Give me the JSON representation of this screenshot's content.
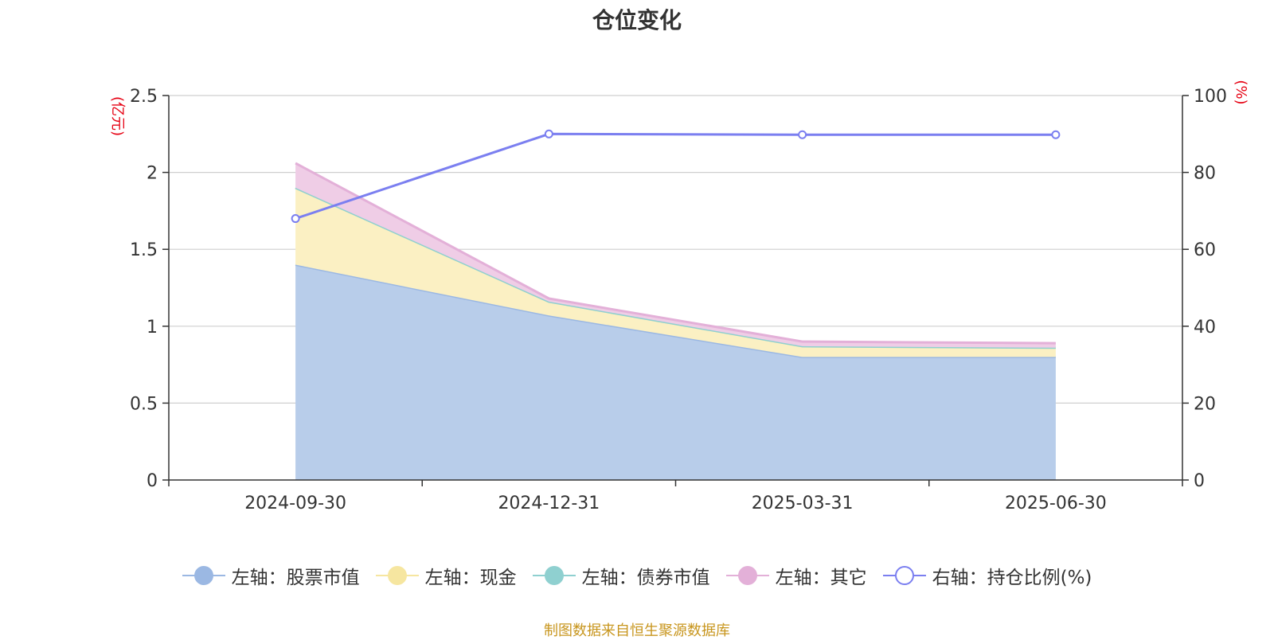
{
  "chart_data": {
    "type": "area",
    "title": "仓位变化",
    "left_axis_unit": "(亿元)",
    "right_axis_unit": "(%)",
    "categories": [
      "2024-09-30",
      "2024-12-31",
      "2025-03-31",
      "2025-06-30"
    ],
    "left_axis": {
      "range": [
        0,
        2.5
      ],
      "ticks": [
        "0",
        "0.5",
        "1",
        "1.5",
        "2",
        "2.5"
      ]
    },
    "right_axis": {
      "range": [
        0,
        100
      ],
      "ticks": [
        "0",
        "20",
        "40",
        "60",
        "80",
        "100"
      ]
    },
    "grid": true,
    "legend_position": "bottom",
    "stacked": true,
    "series": [
      {
        "name": "左轴：股票市值",
        "axis": "left",
        "type": "area",
        "color": "#9bb8e3",
        "fill": "#b8cdea",
        "values": [
          1.4,
          1.07,
          0.8,
          0.8
        ]
      },
      {
        "name": "左轴：现金",
        "axis": "left",
        "type": "area",
        "color": "#f6e6a0",
        "fill": "#fbf0c3",
        "values": [
          0.5,
          0.09,
          0.07,
          0.06
        ]
      },
      {
        "name": "左轴：债券市值",
        "axis": "left",
        "type": "area",
        "color": "#8fd0d0",
        "fill": "#b5e2e2",
        "values": [
          0,
          0,
          0,
          0
        ]
      },
      {
        "name": "左轴：其它",
        "axis": "left",
        "type": "area",
        "color": "#e3b0d8",
        "fill": "#efcde6",
        "values": [
          0.16,
          0.02,
          0.03,
          0.03
        ]
      },
      {
        "name": "右轴：持仓比例(%)",
        "axis": "right",
        "type": "line",
        "color": "#7b7ff0",
        "values": [
          68,
          90,
          89.8,
          89.8
        ]
      }
    ],
    "source_note": "制图数据来自恒生聚源数据库"
  }
}
